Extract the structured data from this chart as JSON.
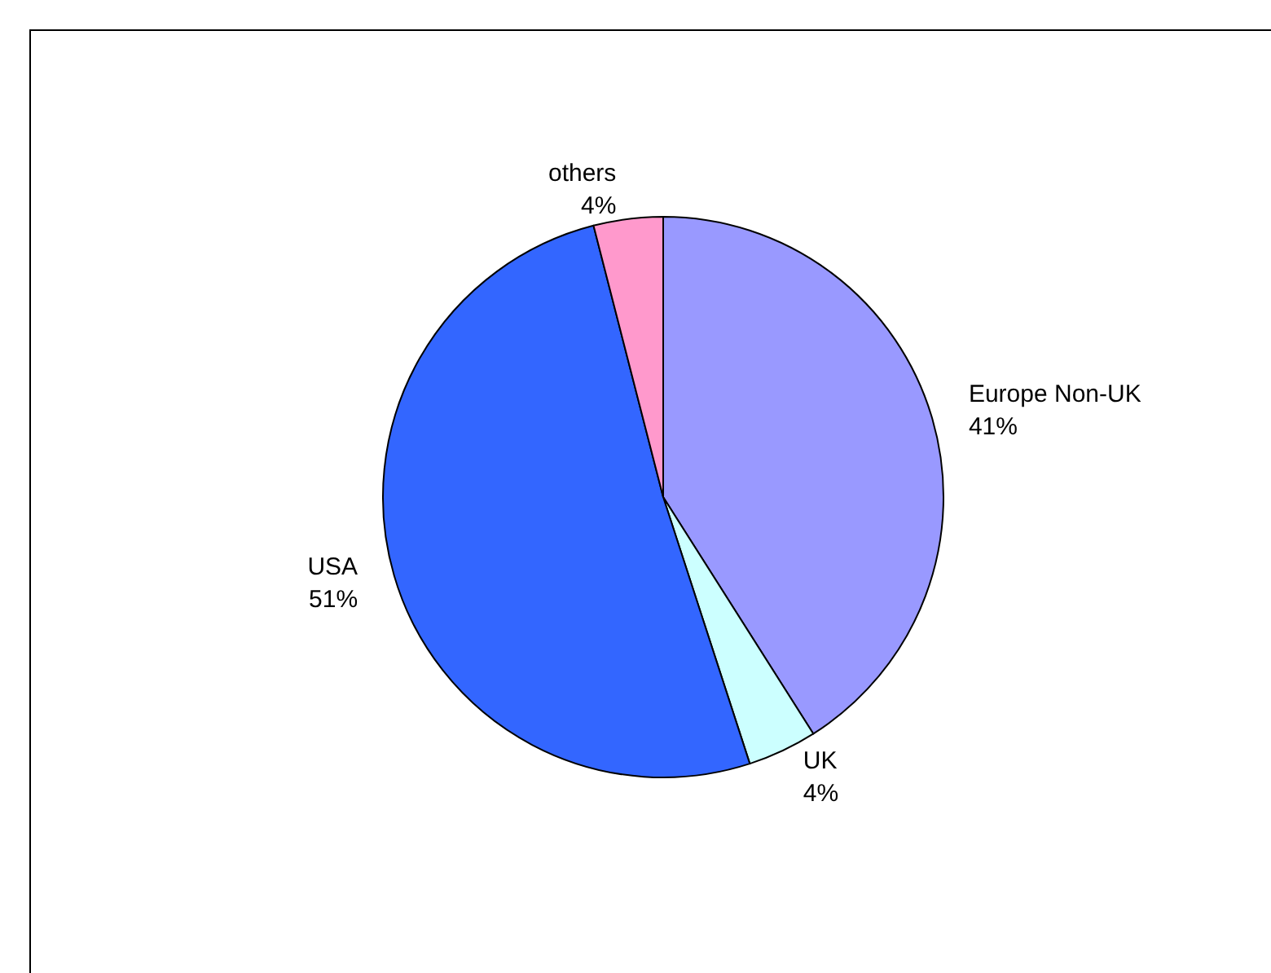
{
  "chart_data": {
    "type": "pie",
    "categories": [
      "Europe Non-UK",
      "UK",
      "USA",
      "others"
    ],
    "values": [
      41,
      4,
      51,
      4
    ],
    "value_labels": [
      "41%",
      "4%",
      "51%",
      "4%"
    ],
    "colors": [
      "#9999ff",
      "#ccffff",
      "#3366ff",
      "#ff99cc"
    ]
  }
}
